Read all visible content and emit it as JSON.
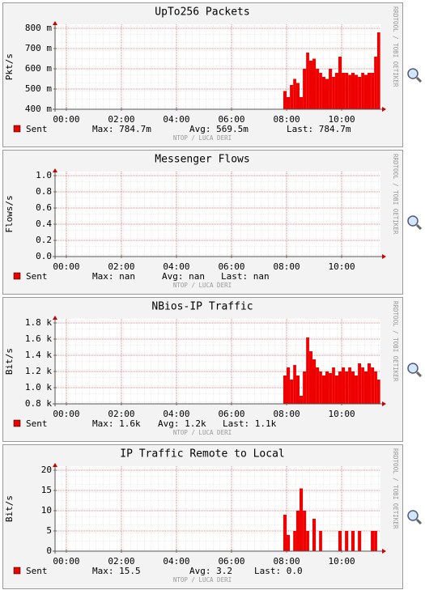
{
  "chart_data": [
    {
      "type": "area",
      "title": "UpTo256 Packets",
      "y_label": "Pkt/s",
      "x": [
        7.88,
        8.0,
        8.12,
        8.24,
        8.35,
        8.47,
        8.59,
        8.71,
        8.82,
        8.94,
        9.06,
        9.18,
        9.29,
        9.41,
        9.53,
        9.65,
        9.76,
        9.88,
        10.0,
        10.12,
        10.24,
        10.35,
        10.47,
        10.59,
        10.71,
        10.82,
        10.94,
        11.06,
        11.18,
        11.29
      ],
      "series": [
        {
          "name": "Sent",
          "color": "#ee0000",
          "values": [
            0.49,
            0.46,
            0.52,
            0.55,
            0.53,
            0.46,
            0.6,
            0.68,
            0.64,
            0.65,
            0.6,
            0.58,
            0.56,
            0.55,
            0.6,
            0.56,
            0.58,
            0.66,
            0.58,
            0.58,
            0.57,
            0.58,
            0.57,
            0.56,
            0.58,
            0.57,
            0.58,
            0.58,
            0.66,
            0.78
          ]
        }
      ],
      "xlim": [
        -0.41,
        11.41
      ],
      "xticks": [
        {
          "value": 0,
          "label": "00:00"
        },
        {
          "value": 2,
          "label": "02:00"
        },
        {
          "value": 4,
          "label": "04:00"
        },
        {
          "value": 6,
          "label": "06:00"
        },
        {
          "value": 8,
          "label": "08:00"
        },
        {
          "value": 10,
          "label": "10:00"
        }
      ],
      "ylim": [
        0.4,
        0.82
      ],
      "yticks": [
        {
          "value": 0.4,
          "label": "400 m"
        },
        {
          "value": 0.5,
          "label": "500 m"
        },
        {
          "value": 0.6,
          "label": "600 m"
        },
        {
          "value": 0.7,
          "label": "700 m"
        },
        {
          "value": 0.8,
          "label": "800 m"
        }
      ],
      "grid": true,
      "stats": [
        "Max: 784.7m",
        "Avg: 569.5m",
        "Last: 784.7m"
      ],
      "watermark": "NTOP / LUCA DERI",
      "side_text": "RRDTOOL / TOBI OETIKER"
    },
    {
      "type": "area",
      "title": "Messenger Flows",
      "y_label": "Flows/s",
      "x": [],
      "series": [
        {
          "name": "Sent",
          "color": "#ee0000",
          "values": []
        }
      ],
      "xlim": [
        -0.41,
        11.41
      ],
      "xticks": [
        {
          "value": 0,
          "label": "00:00"
        },
        {
          "value": 2,
          "label": "02:00"
        },
        {
          "value": 4,
          "label": "04:00"
        },
        {
          "value": 6,
          "label": "06:00"
        },
        {
          "value": 8,
          "label": "08:00"
        },
        {
          "value": 10,
          "label": "10:00"
        }
      ],
      "ylim": [
        0,
        1.05
      ],
      "yticks": [
        {
          "value": 0,
          "label": "0.0"
        },
        0.2,
        0.4,
        0.6,
        0.8,
        {
          "value": 1,
          "label": "1.0"
        }
      ],
      "grid": true,
      "stats": [
        "Max: nan",
        "Avg: nan",
        "Last: nan"
      ],
      "watermark": "NTOP / LUCA DERI",
      "side_text": "RRDTOOL / TOBI OETIKER"
    },
    {
      "type": "area",
      "title": "NBios-IP Traffic",
      "y_label": "Bit/s",
      "x": [
        7.88,
        8.0,
        8.12,
        8.24,
        8.35,
        8.47,
        8.59,
        8.71,
        8.82,
        8.94,
        9.06,
        9.18,
        9.29,
        9.41,
        9.53,
        9.65,
        9.76,
        9.88,
        10.0,
        10.12,
        10.24,
        10.35,
        10.47,
        10.59,
        10.71,
        10.82,
        10.94,
        11.06,
        11.18,
        11.29
      ],
      "series": [
        {
          "name": "Sent",
          "color": "#ee0000",
          "values": [
            1150,
            1250,
            1100,
            1280,
            1150,
            900,
            1200,
            1620,
            1450,
            1350,
            1250,
            1200,
            1150,
            1200,
            1180,
            1250,
            1150,
            1200,
            1250,
            1200,
            1250,
            1200,
            1150,
            1300,
            1250,
            1200,
            1300,
            1250,
            1200,
            1100
          ]
        }
      ],
      "xlim": [
        -0.41,
        11.41
      ],
      "xticks": [
        {
          "value": 0,
          "label": "00:00"
        },
        {
          "value": 2,
          "label": "02:00"
        },
        {
          "value": 4,
          "label": "04:00"
        },
        {
          "value": 6,
          "label": "06:00"
        },
        {
          "value": 8,
          "label": "08:00"
        },
        {
          "value": 10,
          "label": "10:00"
        }
      ],
      "ylim": [
        800,
        1850
      ],
      "yticks": [
        {
          "value": 800,
          "label": "0.8 k"
        },
        {
          "value": 1000,
          "label": "1.0 k"
        },
        {
          "value": 1200,
          "label": "1.2 k"
        },
        {
          "value": 1400,
          "label": "1.4 k"
        },
        {
          "value": 1600,
          "label": "1.6 k"
        },
        {
          "value": 1800,
          "label": "1.8 k"
        }
      ],
      "grid": true,
      "stats": [
        "Max: 1.6k",
        "Avg: 1.2k",
        "Last: 1.1k"
      ],
      "watermark": "NTOP / LUCA DERI",
      "side_text": "RRDTOOL / TOBI OETIKER"
    },
    {
      "type": "area",
      "title": "IP Traffic Remote to Local",
      "y_label": "Bit/s",
      "x": [
        7.88,
        8.0,
        8.12,
        8.24,
        8.35,
        8.47,
        8.59,
        8.71,
        8.82,
        8.94,
        9.06,
        9.18,
        9.29,
        9.41,
        9.53,
        9.65,
        9.76,
        9.88,
        10.0,
        10.12,
        10.24,
        10.35,
        10.47,
        10.59,
        10.71,
        10.82,
        10.94,
        11.06,
        11.18,
        11.29
      ],
      "series": [
        {
          "name": "Sent",
          "color": "#ee0000",
          "values": [
            9,
            4,
            0,
            5,
            10,
            15.5,
            10,
            5,
            0,
            8,
            0,
            5,
            0,
            0,
            0,
            0,
            0,
            5,
            0,
            5,
            0,
            5,
            0,
            5,
            0,
            0,
            0,
            5,
            5,
            0
          ]
        }
      ],
      "xlim": [
        -0.41,
        11.41
      ],
      "xticks": [
        {
          "value": 0,
          "label": "00:00"
        },
        {
          "value": 2,
          "label": "02:00"
        },
        {
          "value": 4,
          "label": "04:00"
        },
        {
          "value": 6,
          "label": "06:00"
        },
        {
          "value": 8,
          "label": "08:00"
        },
        {
          "value": 10,
          "label": "10:00"
        }
      ],
      "ylim": [
        0,
        21
      ],
      "yticks": [
        0,
        5,
        10,
        15,
        20
      ],
      "grid": true,
      "stats": [
        "Max: 15.5",
        "Avg: 3.2",
        "Last: 0.0"
      ],
      "watermark": "NTOP / LUCA DERI",
      "side_text": "RRDTOOL / TOBI OETIKER"
    }
  ]
}
